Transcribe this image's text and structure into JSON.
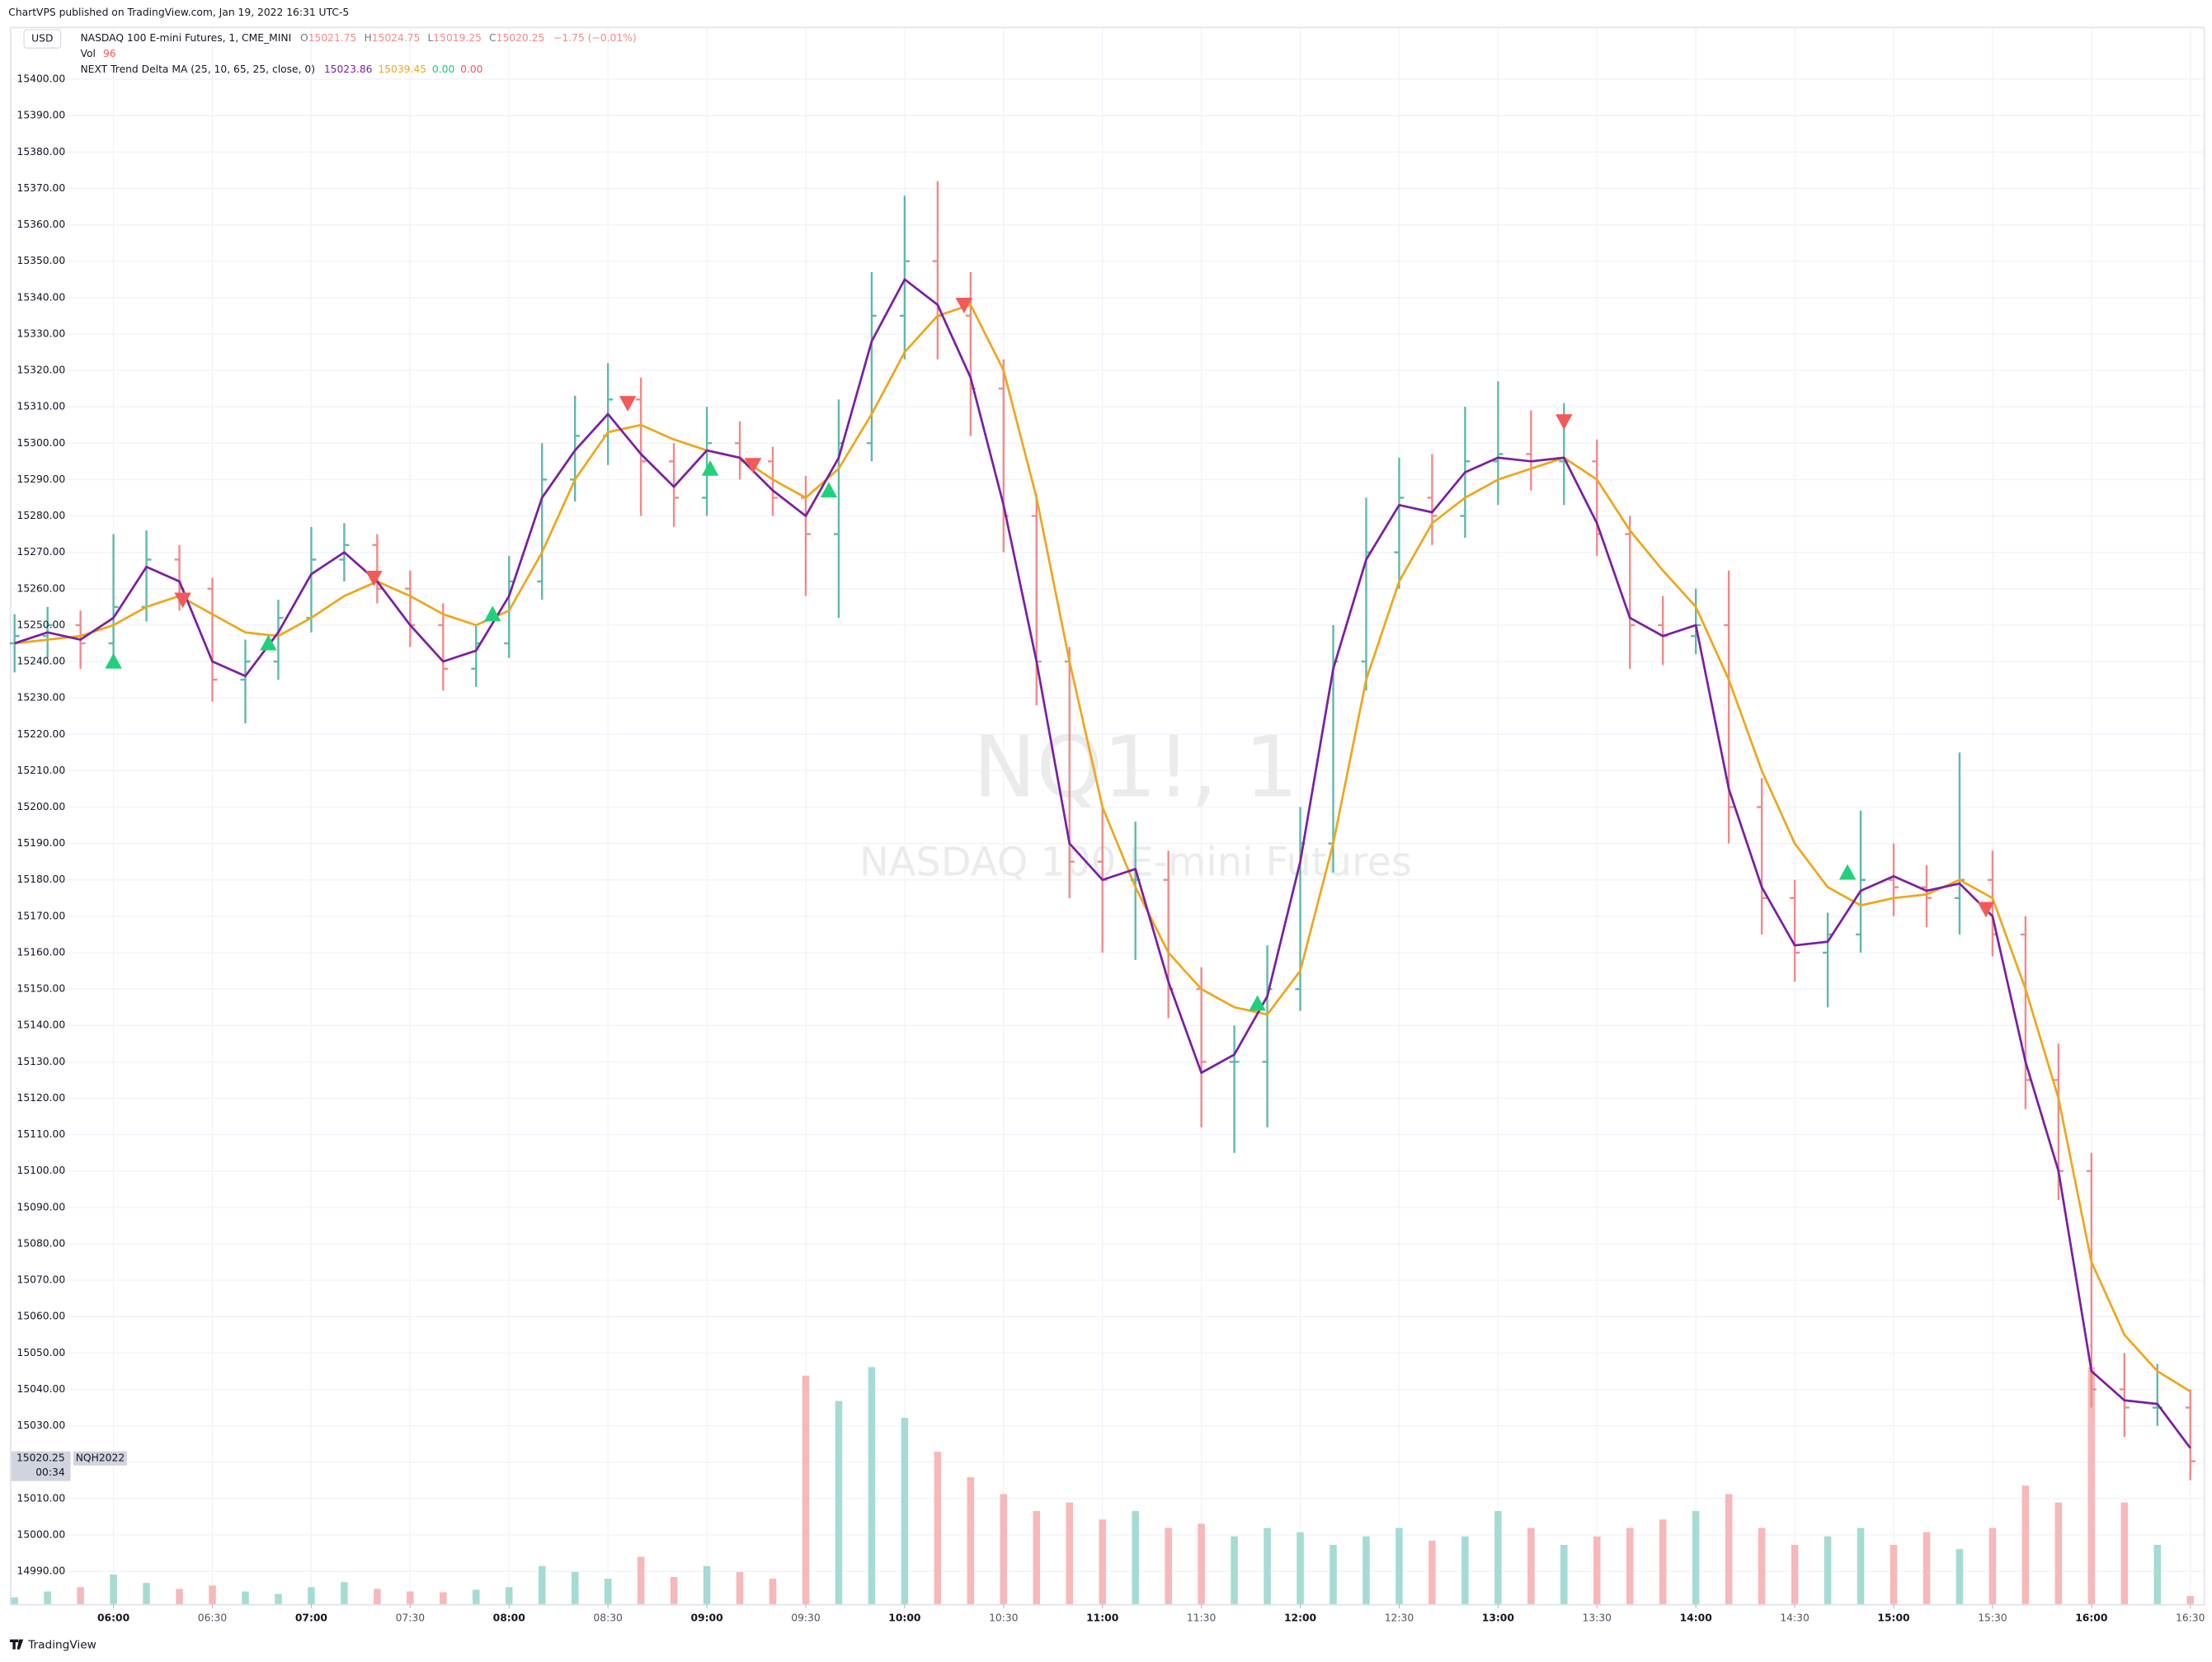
{
  "header": "ChartVPS published on TradingView.com, Jan 19, 2022 16:31 UTC-5",
  "footer": "TradingView",
  "chart_data": {
    "type": "ohlc",
    "currency": "USD",
    "watermark": "NQ1!, 1",
    "watermark_subtitle": "NASDAQ 100 E-mini Futures",
    "legend": {
      "symbol": "NASDAQ 100 E-mini Futures, 1, CME_MINI",
      "ohlc": [
        [
          "O",
          "15021.75"
        ],
        [
          "H",
          "15024.75"
        ],
        [
          "L",
          "15019.25"
        ],
        [
          "C",
          "15020.25"
        ]
      ],
      "change": "−1.75 (−0.01%)",
      "vol_label": "Vol",
      "vol_value": "96",
      "indicator": "NEXT Trend Delta MA (25, 10, 65, 25, close, 0)",
      "indicator_values": [
        [
          "15023.86",
          "#7b1fa2"
        ],
        [
          "15039.45",
          "#eea71c"
        ],
        [
          "0.00",
          "#22c57a"
        ],
        [
          "0.00",
          "#f25a5a"
        ]
      ]
    },
    "price_label": "15020.25",
    "countdown": "00:34",
    "contract": "NQH2022",
    "xlim": [
      "05:29",
      "16:34"
    ],
    "ylim": [
      14981,
      15414
    ],
    "volume_ylim": [
      0,
      5000
    ],
    "up_color": "#5fb8ab",
    "down_color": "#f08a8a",
    "volume_up_color": "#a5dbd3",
    "volume_down_color": "#f6b8b8",
    "grid": true,
    "xticks": [
      "06:00",
      "06:30",
      "07:00",
      "07:30",
      "08:00",
      "08:30",
      "09:00",
      "09:30",
      "10:00",
      "10:30",
      "11:00",
      "11:30",
      "12:00",
      "12:30",
      "13:00",
      "13:30",
      "14:00",
      "14:30",
      "15:00",
      "15:30",
      "16:00",
      "16:30"
    ],
    "yticks": [
      {
        "value": 14990,
        "label": "14990.00"
      },
      {
        "value": 15000,
        "label": "15000.00"
      },
      {
        "value": 15010,
        "label": "15010.00"
      },
      {
        "value": 15020,
        "label": "15020.00"
      },
      {
        "value": 15030,
        "label": "15030.00"
      },
      {
        "value": 15040,
        "label": "15040.00"
      },
      {
        "value": 15050,
        "label": "15050.00"
      },
      {
        "value": 15060,
        "label": "15060.00"
      },
      {
        "value": 15070,
        "label": "15070.00"
      },
      {
        "value": 15080,
        "label": "15080.00"
      },
      {
        "value": 15090,
        "label": "15090.00"
      },
      {
        "value": 15100,
        "label": "15100.00"
      },
      {
        "value": 15110,
        "label": "15110.00"
      },
      {
        "value": 15120,
        "label": "15120.00"
      },
      {
        "value": 15130,
        "label": "15130.00"
      },
      {
        "value": 15140,
        "label": "15140.00"
      },
      {
        "value": 15150,
        "label": "15150.00"
      },
      {
        "value": 15160,
        "label": "15160.00"
      },
      {
        "value": 15170,
        "label": "15170.00"
      },
      {
        "value": 15180,
        "label": "15180.00"
      },
      {
        "value": 15190,
        "label": "15190.00"
      },
      {
        "value": 15200,
        "label": "15200.00"
      },
      {
        "value": 15210,
        "label": "15210.00"
      },
      {
        "value": 15220,
        "label": "15220.00"
      },
      {
        "value": 15230,
        "label": "15230.00"
      },
      {
        "value": 15240,
        "label": "15240.00"
      },
      {
        "value": 15250,
        "label": "15250.00"
      },
      {
        "value": 15260,
        "label": "15260.00"
      },
      {
        "value": 15270,
        "label": "15270.00"
      },
      {
        "value": 15280,
        "label": "15280.00"
      },
      {
        "value": 15290,
        "label": "15290.00"
      },
      {
        "value": 15300,
        "label": "15300.00"
      },
      {
        "value": 15310,
        "label": "15310.00"
      },
      {
        "value": 15320,
        "label": "15320.00"
      },
      {
        "value": 15330,
        "label": "15330.00"
      },
      {
        "value": 15340,
        "label": "15340.00"
      },
      {
        "value": 15350,
        "label": "15350.00"
      },
      {
        "value": 15360,
        "label": "15360.00"
      },
      {
        "value": 15370,
        "label": "15370.00"
      },
      {
        "value": 15380,
        "label": "15380.00"
      },
      {
        "value": 15390,
        "label": "15390.00"
      },
      {
        "value": 15400,
        "label": "15400.00"
      }
    ],
    "x": [
      "05:30",
      "05:40",
      "05:50",
      "06:00",
      "06:10",
      "06:20",
      "06:30",
      "06:40",
      "06:50",
      "07:00",
      "07:10",
      "07:20",
      "07:30",
      "07:40",
      "07:50",
      "08:00",
      "08:10",
      "08:20",
      "08:30",
      "08:40",
      "08:50",
      "09:00",
      "09:10",
      "09:20",
      "09:30",
      "09:40",
      "09:50",
      "10:00",
      "10:10",
      "10:20",
      "10:30",
      "10:40",
      "10:50",
      "11:00",
      "11:10",
      "11:20",
      "11:30",
      "11:40",
      "11:50",
      "12:00",
      "12:10",
      "12:20",
      "12:30",
      "12:40",
      "12:50",
      "13:00",
      "13:10",
      "13:20",
      "13:30",
      "13:40",
      "13:50",
      "14:00",
      "14:10",
      "14:20",
      "14:30",
      "14:40",
      "14:50",
      "15:00",
      "15:10",
      "15:20",
      "15:30",
      "15:40",
      "15:50",
      "16:00",
      "16:10",
      "16:20",
      "16:30"
    ],
    "open": [
      15245,
      15247,
      15250,
      15245,
      15255,
      15268,
      15260,
      15235,
      15240,
      15252,
      15268,
      15272,
      15260,
      15250,
      15238,
      15245,
      15262,
      15290,
      15302,
      15312,
      15295,
      15285,
      15300,
      15295,
      15285,
      15275,
      15300,
      15335,
      15350,
      15335,
      15315,
      15280,
      15240,
      15185,
      15180,
      15180,
      15150,
      15130,
      15130,
      15150,
      15190,
      15240,
      15270,
      15285,
      15280,
      15295,
      15297,
      15295,
      15295,
      15275,
      15250,
      15247,
      15250,
      15200,
      15175,
      15160,
      15165,
      15180,
      15178,
      15175,
      15180,
      15165,
      15125,
      15100,
      15040,
      15035,
      15035
    ],
    "high": [
      15253,
      15255,
      15254,
      15275,
      15276,
      15272,
      15263,
      15246,
      15257,
      15277,
      15278,
      15275,
      15265,
      15256,
      15250,
      15269,
      15300,
      15313,
      15322,
      15318,
      15300,
      15310,
      15306,
      15299,
      15291,
      15312,
      15347,
      15368,
      15372,
      15347,
      15323,
      15286,
      15244,
      15200,
      15196,
      15188,
      15156,
      15140,
      15162,
      15200,
      15250,
      15285,
      15296,
      15297,
      15310,
      15317,
      15309,
      15311,
      15301,
      15280,
      15258,
      15260,
      15265,
      15208,
      15180,
      15171,
      15199,
      15190,
      15184,
      15215,
      15188,
      15170,
      15135,
      15105,
      15050,
      15047,
      15040
    ],
    "low": [
      15237,
      15241,
      15238,
      15240,
      15251,
      15254,
      15229,
      15223,
      15235,
      15248,
      15262,
      15256,
      15244,
      15232,
      15233,
      15241,
      15257,
      15284,
      15294,
      15280,
      15277,
      15280,
      15290,
      15280,
      15258,
      15252,
      15295,
      15323,
      15323,
      15302,
      15270,
      15228,
      15175,
      15160,
      15158,
      15142,
      15112,
      15105,
      15112,
      15144,
      15182,
      15232,
      15260,
      15272,
      15274,
      15283,
      15287,
      15283,
      15269,
      15238,
      15239,
      15242,
      15190,
      15165,
      15152,
      15145,
      15160,
      15170,
      15167,
      15165,
      15159,
      15117,
      15092,
      15035,
      15027,
      15030,
      15015
    ],
    "close": [
      15247,
      15250,
      15245,
      15255,
      15268,
      15260,
      15235,
      15240,
      15252,
      15268,
      15272,
      15260,
      15250,
      15238,
      15245,
      15262,
      15290,
      15302,
      15312,
      15295,
      15285,
      15300,
      15295,
      15285,
      15275,
      15300,
      15335,
      15350,
      15335,
      15315,
      15280,
      15240,
      15185,
      15180,
      15180,
      15150,
      15130,
      15130,
      15150,
      15190,
      15240,
      15270,
      15285,
      15280,
      15295,
      15297,
      15295,
      15295,
      15275,
      15250,
      15247,
      15250,
      15200,
      15175,
      15160,
      15165,
      15180,
      15178,
      15175,
      15180,
      15165,
      15125,
      15100,
      15040,
      15035,
      15035,
      15020.25
    ],
    "volume": [
      80,
      150,
      200,
      350,
      250,
      180,
      220,
      150,
      120,
      200,
      260,
      180,
      150,
      140,
      170,
      200,
      450,
      380,
      300,
      560,
      320,
      450,
      380,
      300,
      2700,
      2400,
      2800,
      2200,
      1800,
      1500,
      1300,
      1100,
      1200,
      1000,
      1100,
      900,
      950,
      800,
      900,
      850,
      700,
      800,
      900,
      750,
      800,
      1100,
      900,
      700,
      800,
      900,
      1000,
      1100,
      1300,
      900,
      700,
      800,
      900,
      700,
      850,
      650,
      900,
      1400,
      1200,
      2800,
      1200,
      700,
      96
    ],
    "ma_fast": {
      "color": "#7b1fa2",
      "values": [
        15245,
        15248,
        15246,
        15252,
        15266,
        15262,
        15240,
        15236,
        15248,
        15264,
        15270,
        15262,
        15250,
        15240,
        15243,
        15258,
        15285,
        15298,
        15308,
        15297,
        15288,
        15298,
        15296,
        15287,
        15280,
        15296,
        15328,
        15345,
        15338,
        15318,
        15283,
        15240,
        15190,
        15180,
        15183,
        15152,
        15127,
        15132,
        15148,
        15185,
        15238,
        15268,
        15283,
        15281,
        15292,
        15296,
        15295,
        15296,
        15278,
        15252,
        15247,
        15250,
        15205,
        15178,
        15162,
        15163,
        15177,
        15181,
        15177,
        15179,
        15170,
        15130,
        15100,
        15045,
        15037,
        15036,
        15023.86
      ]
    },
    "ma_slow": {
      "color": "#eea71c",
      "values": [
        15245,
        15246,
        15247,
        15250,
        15255,
        15258,
        15253,
        15248,
        15247,
        15252,
        15258,
        15262,
        15258,
        15253,
        15250,
        15254,
        15270,
        15290,
        15303,
        15305,
        15301,
        15298,
        15296,
        15290,
        15285,
        15293,
        15308,
        15325,
        15335,
        15338,
        15320,
        15285,
        15240,
        15200,
        15178,
        15160,
        15150,
        15145,
        15143,
        15155,
        15190,
        15235,
        15262,
        15278,
        15285,
        15290,
        15293,
        15296,
        15290,
        15276,
        15265,
        15255,
        15235,
        15210,
        15190,
        15178,
        15173,
        15175,
        15176,
        15180,
        15175,
        15150,
        15120,
        15075,
        15055,
        15045,
        15039.45
      ]
    },
    "signal_up_color": "#22d07c",
    "signal_down_color": "#f25a5a",
    "signals_up": [
      {
        "x": "06:00",
        "y": 15240
      },
      {
        "x": "06:47",
        "y": 15245
      },
      {
        "x": "07:55",
        "y": 15253
      },
      {
        "x": "09:01",
        "y": 15293
      },
      {
        "x": "09:37",
        "y": 15287
      },
      {
        "x": "11:47",
        "y": 15146
      },
      {
        "x": "14:46",
        "y": 15182
      }
    ],
    "signals_down": [
      {
        "x": "06:21",
        "y": 15257
      },
      {
        "x": "07:19",
        "y": 15263
      },
      {
        "x": "08:36",
        "y": 15311
      },
      {
        "x": "09:14",
        "y": 15294
      },
      {
        "x": "10:18",
        "y": 15338
      },
      {
        "x": "13:20",
        "y": 15306
      },
      {
        "x": "15:28",
        "y": 15172
      }
    ]
  }
}
